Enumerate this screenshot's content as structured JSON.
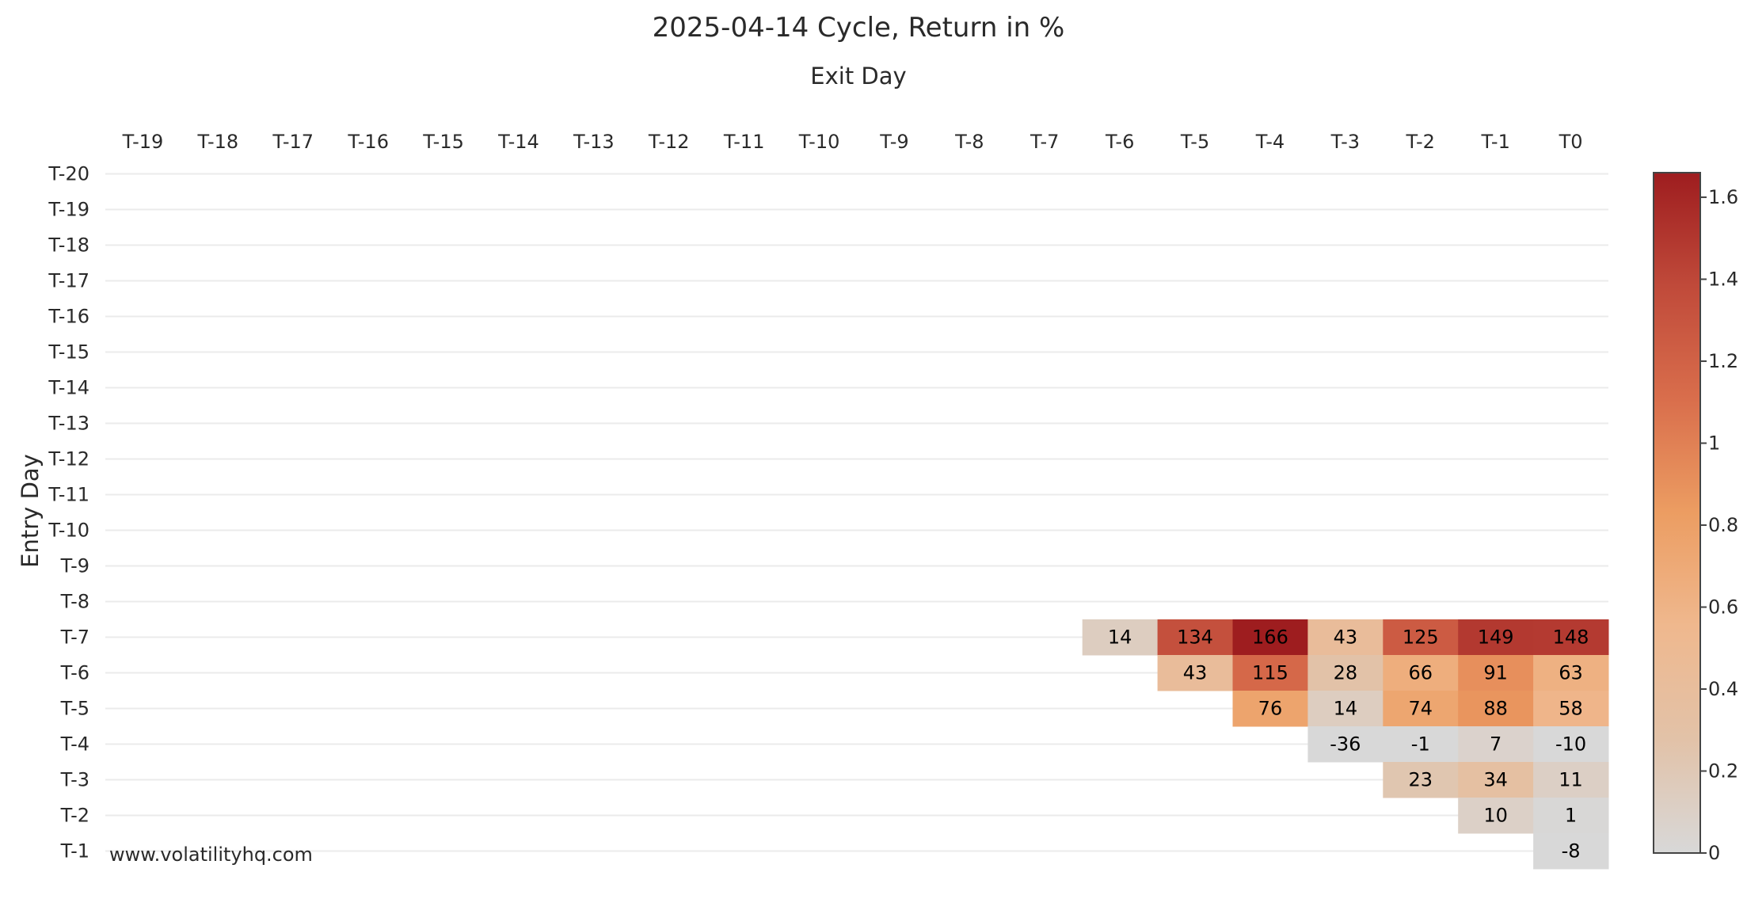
{
  "chart_data": {
    "type": "heatmap",
    "title": "2025-04-14 Cycle, Return in %",
    "xlabel": "Exit Day",
    "ylabel": "Entry Day",
    "x_categories": [
      "T-19",
      "T-18",
      "T-17",
      "T-16",
      "T-15",
      "T-14",
      "T-13",
      "T-12",
      "T-11",
      "T-10",
      "T-9",
      "T-8",
      "T-7",
      "T-6",
      "T-5",
      "T-4",
      "T-3",
      "T-2",
      "T-1",
      "T0"
    ],
    "y_categories": [
      "T-20",
      "T-19",
      "T-18",
      "T-17",
      "T-16",
      "T-15",
      "T-14",
      "T-13",
      "T-12",
      "T-11",
      "T-10",
      "T-9",
      "T-8",
      "T-7",
      "T-6",
      "T-5",
      "T-4",
      "T-3",
      "T-2",
      "T-1"
    ],
    "x_axis_position": "top",
    "grid": true,
    "cells": [
      {
        "entry": "T-7",
        "exit": "T-6",
        "label": "14",
        "value": 0.14
      },
      {
        "entry": "T-7",
        "exit": "T-5",
        "label": "134",
        "value": 1.34
      },
      {
        "entry": "T-7",
        "exit": "T-4",
        "label": "166",
        "value": 1.66
      },
      {
        "entry": "T-7",
        "exit": "T-3",
        "label": "43",
        "value": 0.43
      },
      {
        "entry": "T-7",
        "exit": "T-2",
        "label": "125",
        "value": 1.25
      },
      {
        "entry": "T-7",
        "exit": "T-1",
        "label": "149",
        "value": 1.49
      },
      {
        "entry": "T-7",
        "exit": "T0",
        "label": "148",
        "value": 1.48
      },
      {
        "entry": "T-6",
        "exit": "T-5",
        "label": "43",
        "value": 0.43
      },
      {
        "entry": "T-6",
        "exit": "T-4",
        "label": "115",
        "value": 1.15
      },
      {
        "entry": "T-6",
        "exit": "T-3",
        "label": "28",
        "value": 0.28
      },
      {
        "entry": "T-6",
        "exit": "T-2",
        "label": "66",
        "value": 0.66
      },
      {
        "entry": "T-6",
        "exit": "T-1",
        "label": "91",
        "value": 0.91
      },
      {
        "entry": "T-6",
        "exit": "T0",
        "label": "63",
        "value": 0.63
      },
      {
        "entry": "T-5",
        "exit": "T-4",
        "label": "76",
        "value": 0.76
      },
      {
        "entry": "T-5",
        "exit": "T-3",
        "label": "14",
        "value": 0.14
      },
      {
        "entry": "T-5",
        "exit": "T-2",
        "label": "74",
        "value": 0.74
      },
      {
        "entry": "T-5",
        "exit": "T-1",
        "label": "88",
        "value": 0.88
      },
      {
        "entry": "T-5",
        "exit": "T0",
        "label": "58",
        "value": 0.58
      },
      {
        "entry": "T-4",
        "exit": "T-3",
        "label": "-36",
        "value": -0.36
      },
      {
        "entry": "T-4",
        "exit": "T-2",
        "label": "-1",
        "value": -0.01
      },
      {
        "entry": "T-4",
        "exit": "T-1",
        "label": "7",
        "value": 0.07
      },
      {
        "entry": "T-4",
        "exit": "T0",
        "label": "-10",
        "value": -0.1
      },
      {
        "entry": "T-3",
        "exit": "T-2",
        "label": "23",
        "value": 0.23
      },
      {
        "entry": "T-3",
        "exit": "T-1",
        "label": "34",
        "value": 0.34
      },
      {
        "entry": "T-3",
        "exit": "T0",
        "label": "11",
        "value": 0.11
      },
      {
        "entry": "T-2",
        "exit": "T-1",
        "label": "10",
        "value": 0.1
      },
      {
        "entry": "T-2",
        "exit": "T0",
        "label": "1",
        "value": 0.01
      },
      {
        "entry": "T-1",
        "exit": "T0",
        "label": "-8",
        "value": -0.08
      }
    ],
    "colorbar": {
      "min": 0,
      "max": 1.66,
      "ticks": [
        0,
        0.2,
        0.4,
        0.6,
        0.8,
        1,
        1.2,
        1.4,
        1.6
      ],
      "tick_labels": [
        "0",
        "0.2",
        "0.4",
        "0.6",
        "0.8",
        "1",
        "1.2",
        "1.4",
        "1.6"
      ],
      "colorscale": [
        "#d8d8d8",
        "#e2c2a8",
        "#efb88e",
        "#ec9d62",
        "#d96e4c",
        "#c04a3a",
        "#9e1d1f"
      ],
      "position": "right"
    },
    "annotation": "www.volatilityhq.com"
  }
}
